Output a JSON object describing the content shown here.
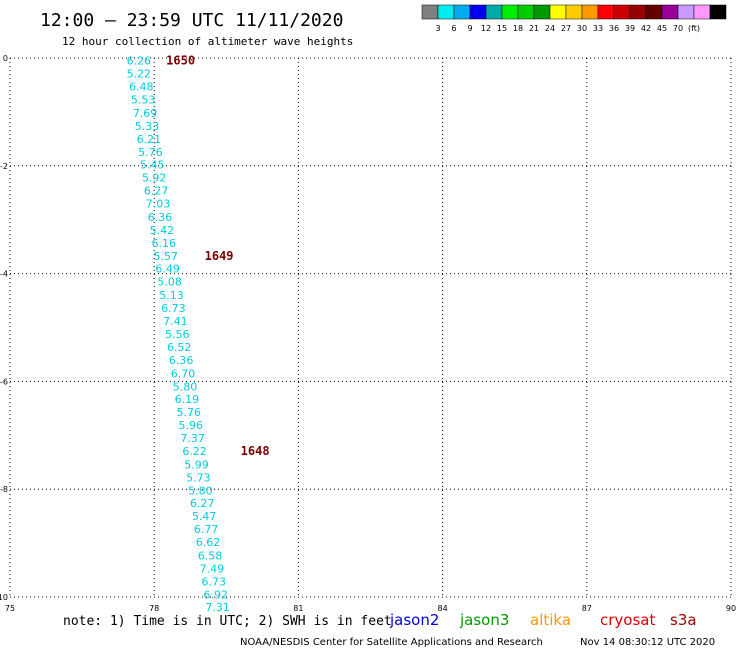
{
  "header": {
    "title": "12:00 – 23:59 UTC 11/11/2020",
    "subtitle": "12 hour collection of altimeter wave heights"
  },
  "colorbar": {
    "colors": [
      "#808080",
      "#00eeee",
      "#00aaee",
      "#0000ee",
      "#00aaaa",
      "#00ee00",
      "#00cc00",
      "#009900",
      "#ffff00",
      "#ffcc00",
      "#ff9900",
      "#ff0000",
      "#cc0000",
      "#990000",
      "#660000",
      "#990099",
      "#cc99ff",
      "#ff99ff",
      "#000000"
    ],
    "ticks": [
      "3",
      "6",
      "9",
      "12",
      "15",
      "18",
      "21",
      "24",
      "27",
      "30",
      "33",
      "36",
      "39",
      "42",
      "45",
      "70"
    ],
    "unit": "(ft)"
  },
  "chart_data": {
    "type": "scatter",
    "title": "12:00 – 23:59 UTC 11/11/2020",
    "subtitle": "12 hour collection of altimeter wave heights",
    "xlim": [
      75,
      90
    ],
    "ylim": [
      -10,
      0
    ],
    "xticks": [
      "75",
      "78",
      "81",
      "84",
      "87",
      "90"
    ],
    "yticks": [
      "0",
      "-2",
      "-4",
      "-6",
      "-8",
      "-10"
    ],
    "grid": true,
    "point_color": "#00ccdd",
    "label_color": "#7a0000",
    "points": [
      {
        "x": 77.68,
        "y": -0.05,
        "value": "6.26"
      },
      {
        "x": 77.68,
        "y": -0.29,
        "value": "5.22"
      },
      {
        "x": 77.73,
        "y": -0.53,
        "value": "6.48"
      },
      {
        "x": 77.77,
        "y": -0.77,
        "value": "5.53"
      },
      {
        "x": 77.81,
        "y": -1.02,
        "value": "7.69"
      },
      {
        "x": 77.85,
        "y": -1.26,
        "value": "5.33"
      },
      {
        "x": 77.89,
        "y": -1.5,
        "value": "6.21"
      },
      {
        "x": 77.92,
        "y": -1.74,
        "value": "5.76"
      },
      {
        "x": 77.96,
        "y": -1.98,
        "value": "5.45"
      },
      {
        "x": 78.0,
        "y": -2.22,
        "value": "5.92"
      },
      {
        "x": 78.04,
        "y": -2.46,
        "value": "6.27"
      },
      {
        "x": 78.08,
        "y": -2.7,
        "value": "7.03"
      },
      {
        "x": 78.12,
        "y": -2.95,
        "value": "6.36"
      },
      {
        "x": 78.16,
        "y": -3.19,
        "value": "5.42"
      },
      {
        "x": 78.2,
        "y": -3.43,
        "value": "6.16"
      },
      {
        "x": 78.24,
        "y": -3.67,
        "value": "5.57"
      },
      {
        "x": 78.28,
        "y": -3.91,
        "value": "6.49"
      },
      {
        "x": 78.32,
        "y": -4.15,
        "value": "5.08"
      },
      {
        "x": 78.36,
        "y": -4.4,
        "value": "5.13"
      },
      {
        "x": 78.4,
        "y": -4.64,
        "value": "6.73"
      },
      {
        "x": 78.44,
        "y": -4.88,
        "value": "7.41"
      },
      {
        "x": 78.48,
        "y": -5.12,
        "value": "5.56"
      },
      {
        "x": 78.52,
        "y": -5.36,
        "value": "6.52"
      },
      {
        "x": 78.56,
        "y": -5.6,
        "value": "6.36"
      },
      {
        "x": 78.6,
        "y": -5.85,
        "value": "6.70"
      },
      {
        "x": 78.64,
        "y": -6.09,
        "value": "5.80"
      },
      {
        "x": 78.68,
        "y": -6.33,
        "value": "6.19"
      },
      {
        "x": 78.72,
        "y": -6.57,
        "value": "5.76"
      },
      {
        "x": 78.76,
        "y": -6.81,
        "value": "5.96"
      },
      {
        "x": 78.8,
        "y": -7.05,
        "value": "7.37"
      },
      {
        "x": 78.84,
        "y": -7.29,
        "value": "6.22"
      },
      {
        "x": 78.88,
        "y": -7.54,
        "value": "5.99"
      },
      {
        "x": 78.92,
        "y": -7.78,
        "value": "5.73"
      },
      {
        "x": 78.96,
        "y": -8.02,
        "value": "5.80"
      },
      {
        "x": 79.0,
        "y": -8.26,
        "value": "6.27"
      },
      {
        "x": 79.04,
        "y": -8.5,
        "value": "5.47"
      },
      {
        "x": 79.08,
        "y": -8.74,
        "value": "6.77"
      },
      {
        "x": 79.12,
        "y": -8.98,
        "value": "6.62"
      },
      {
        "x": 79.16,
        "y": -9.23,
        "value": "6.58"
      },
      {
        "x": 79.2,
        "y": -9.47,
        "value": "7.49"
      },
      {
        "x": 79.24,
        "y": -9.71,
        "value": "6.73"
      },
      {
        "x": 79.28,
        "y": -9.95,
        "value": "6.92"
      },
      {
        "x": 79.32,
        "y": -10.19,
        "value": "7.31"
      }
    ],
    "time_labels": [
      {
        "x": 78.55,
        "y": -0.05,
        "text": "1650"
      },
      {
        "x": 79.35,
        "y": -3.67,
        "text": "1649"
      },
      {
        "x": 80.1,
        "y": -7.29,
        "text": "1648"
      }
    ]
  },
  "legend": {
    "note": "note: 1) Time is in UTC; 2) SWH is in feet",
    "satellites": [
      {
        "name": "jason2",
        "color": "#0000dd"
      },
      {
        "name": "jason3",
        "color": "#009900"
      },
      {
        "name": "altika",
        "color": "#ff9900"
      },
      {
        "name": "cryosat",
        "color": "#dd0000"
      },
      {
        "name": "s3a",
        "color": "#990000"
      }
    ]
  },
  "footer": {
    "credit": "NOAA/NESDIS Center for Satellite Applications and Research",
    "timestamp": "Nov 14 08:30:12 UTC 2020"
  }
}
